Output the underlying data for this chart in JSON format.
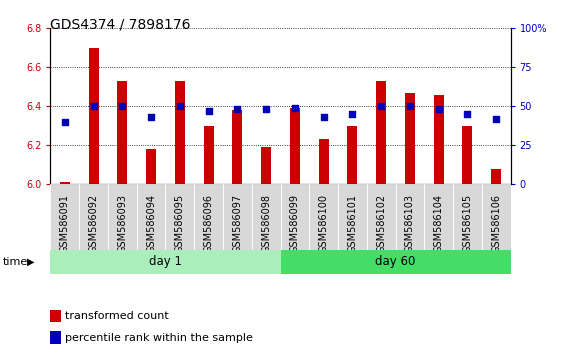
{
  "title": "GDS4374 / 7898176",
  "samples": [
    "GSM586091",
    "GSM586092",
    "GSM586093",
    "GSM586094",
    "GSM586095",
    "GSM586096",
    "GSM586097",
    "GSM586098",
    "GSM586099",
    "GSM586100",
    "GSM586101",
    "GSM586102",
    "GSM586103",
    "GSM586104",
    "GSM586105",
    "GSM586106"
  ],
  "transformed_count": [
    6.01,
    6.7,
    6.53,
    6.18,
    6.53,
    6.3,
    6.38,
    6.19,
    6.39,
    6.23,
    6.3,
    6.53,
    6.47,
    6.46,
    6.3,
    6.08
  ],
  "percentile_rank": [
    40,
    50,
    50,
    43,
    50,
    47,
    48,
    48,
    49,
    43,
    45,
    50,
    50,
    48,
    45,
    42
  ],
  "ylim_left": [
    6.0,
    6.8
  ],
  "ylim_right": [
    0,
    100
  ],
  "yticks_left": [
    6.0,
    6.2,
    6.4,
    6.6,
    6.8
  ],
  "yticks_right": [
    0,
    25,
    50,
    75,
    100
  ],
  "ytick_right_labels": [
    "0",
    "25",
    "50",
    "75",
    "100%"
  ],
  "bar_color": "#cc0000",
  "dot_color": "#0000bb",
  "day1_color": "#aaeebb",
  "day60_color": "#44dd66",
  "day1_label": "day 1",
  "day60_label": "day 60",
  "day1_samples": 8,
  "day60_samples": 8,
  "legend_bar_label": "transformed count",
  "legend_dot_label": "percentile rank within the sample",
  "time_label": "time",
  "bar_width": 0.35,
  "dot_size": 18,
  "title_fontsize": 10,
  "tick_fontsize": 7,
  "label_fontsize": 8,
  "legend_fontsize": 8,
  "sample_bg_color": "#d8d8d8"
}
